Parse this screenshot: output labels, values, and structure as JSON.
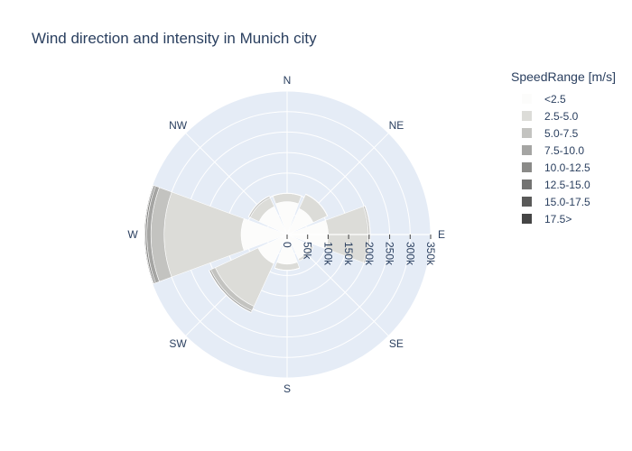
{
  "chart_data": {
    "type": "barpolar",
    "title": "Wind direction and intensity in Munich city",
    "legend_title": "SpeedRange [m/s]",
    "legend_placement": "right",
    "directions": [
      "N",
      "NE",
      "E",
      "SE",
      "S",
      "SW",
      "W",
      "NW"
    ],
    "radial_axis": {
      "range": [
        0,
        350000
      ],
      "tick_values": [
        0,
        50000,
        100000,
        150000,
        200000,
        250000,
        300000,
        350000
      ],
      "tick_labels": [
        "0",
        "50k",
        "100k",
        "150k",
        "200k",
        "250k",
        "300k",
        "350k"
      ]
    },
    "series": [
      {
        "name": "<2.5",
        "color": "#fcfcfb",
        "values": [
          80000,
          70000,
          100000,
          65000,
          72000,
          78000,
          112000,
          75000
        ]
      },
      {
        "name": "2.5-5.0",
        "color": "#dcdcd8",
        "values": [
          20000,
          38000,
          98000,
          6000,
          15000,
          115000,
          188000,
          24000
        ]
      },
      {
        "name": "5.0-7.5",
        "color": "#c3c3c0",
        "values": [
          1000,
          1000,
          4000,
          0,
          1000,
          12000,
          32000,
          4000
        ]
      },
      {
        "name": "7.5-10.0",
        "color": "#a5a5a3",
        "values": [
          0,
          0,
          1000,
          0,
          0,
          4000,
          10000,
          1000
        ]
      },
      {
        "name": "10.0-12.5",
        "color": "#8a8a88",
        "values": [
          0,
          0,
          0,
          0,
          0,
          1000,
          4000,
          0
        ]
      },
      {
        "name": "12.5-15.0",
        "color": "#737372",
        "values": [
          0,
          0,
          0,
          0,
          0,
          0,
          2000,
          0
        ]
      },
      {
        "name": "15.0-17.5",
        "color": "#5a5a59",
        "values": [
          0,
          0,
          0,
          0,
          0,
          0,
          1000,
          0
        ]
      },
      {
        "name": "17.5>",
        "color": "#454545",
        "values": [
          0,
          0,
          0,
          0,
          0,
          0,
          1000,
          0
        ]
      }
    ]
  }
}
